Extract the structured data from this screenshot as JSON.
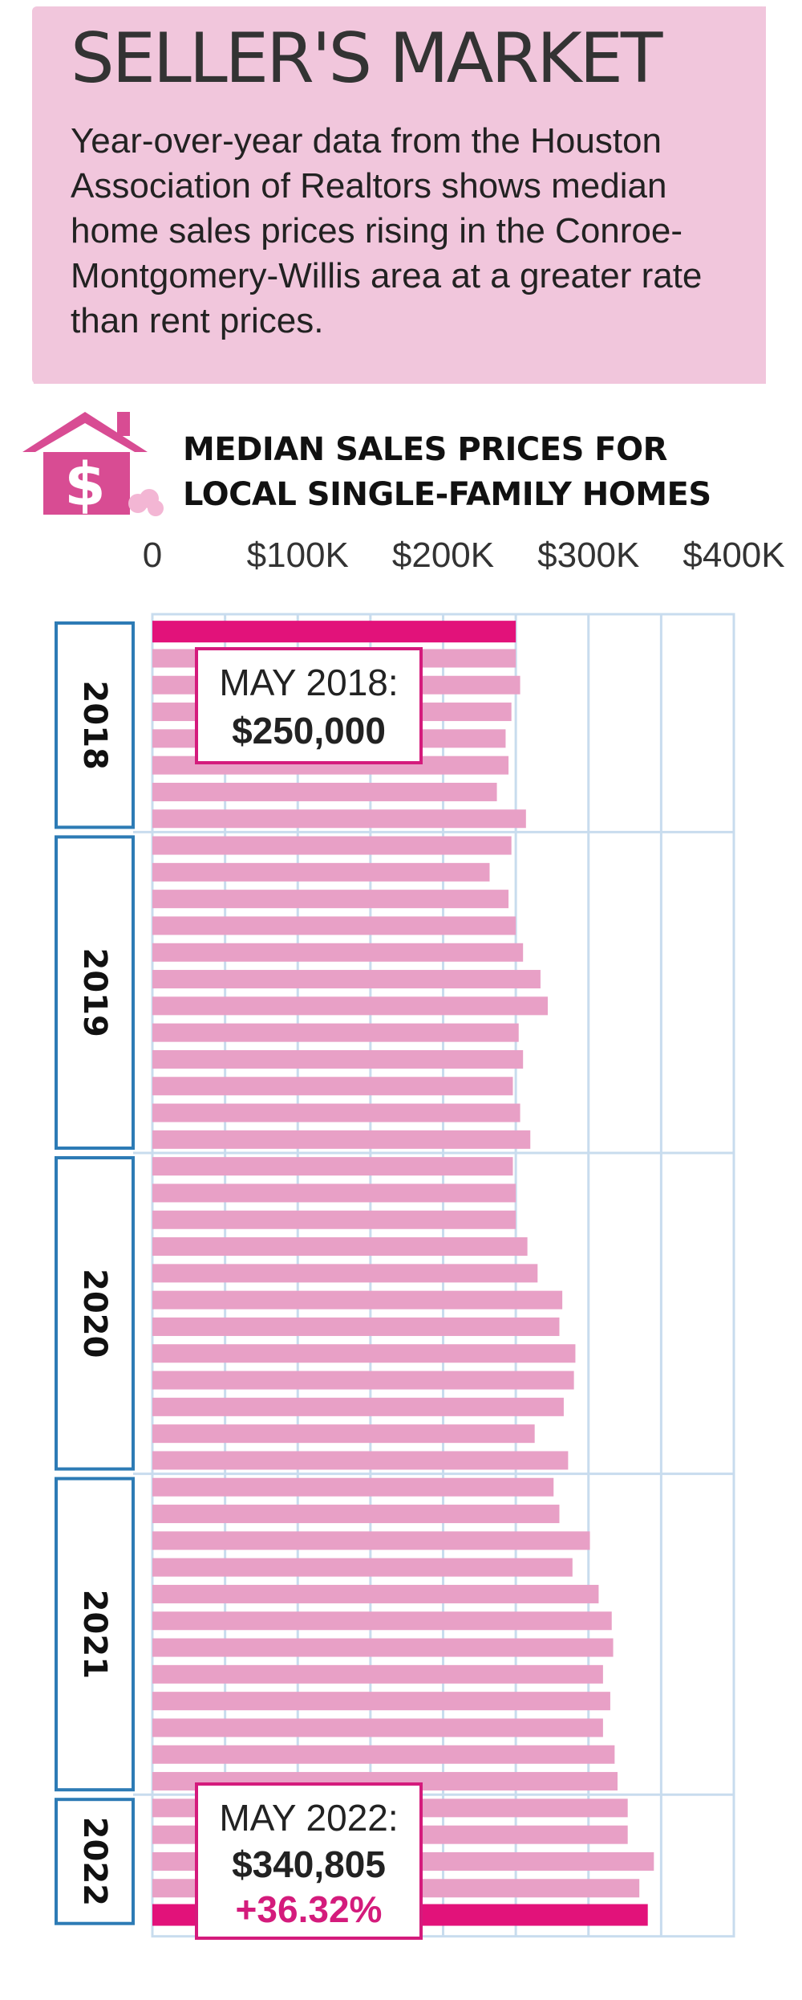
{
  "header": {
    "title": "SELLER'S MARKET",
    "description": "Year-over-year data from the Houston Association of Realtors shows median home sales prices rising in the Conroe-Montgomery-Willis area at a greater rate than rent prices."
  },
  "chart_title_lines": [
    "MEDIAN SALES PRICES FOR",
    "LOCAL SINGLE-FAMILY HOMES"
  ],
  "icons": {
    "house": "house-dollar-icon"
  },
  "colors": {
    "bar": "#e8a0c6",
    "highlight": "#e2127a",
    "grid": "#c8dcee",
    "year_box": "#2d7bb5",
    "header_bg": "#f1c6dc",
    "callout_border": "#d41b7c",
    "change_text": "#d41b7c"
  },
  "callouts": {
    "start": {
      "label": "MAY 2018:",
      "value": "$250,000"
    },
    "end": {
      "label": "MAY 2022:",
      "value": "$340,805",
      "change": "+36.32%"
    }
  },
  "chart_data": {
    "type": "bar",
    "orientation": "horizontal",
    "title": "MEDIAN SALES PRICES FOR LOCAL SINGLE-FAMILY HOMES",
    "xlabel": "",
    "ylabel": "",
    "xlim": [
      0,
      400000
    ],
    "x_ticks": [
      0,
      100000,
      200000,
      300000,
      400000
    ],
    "x_tick_labels": [
      "0",
      "$100K",
      "$200K",
      "$300K",
      "$400K"
    ],
    "grid": true,
    "year_groups": [
      {
        "label": "2018",
        "months": 8
      },
      {
        "label": "2019",
        "months": 12
      },
      {
        "label": "2020",
        "months": 12
      },
      {
        "label": "2021",
        "months": 12
      },
      {
        "label": "2022",
        "months": 5
      }
    ],
    "values": [
      250000,
      250000,
      253000,
      247000,
      243000,
      245000,
      237000,
      257000,
      247000,
      232000,
      245000,
      250000,
      255000,
      267000,
      272000,
      252000,
      255000,
      248000,
      253000,
      260000,
      248000,
      250000,
      250000,
      258000,
      265000,
      282000,
      280000,
      291000,
      290000,
      283000,
      263000,
      286000,
      276000,
      280000,
      301000,
      289000,
      307000,
      316000,
      317000,
      310000,
      315000,
      310000,
      318000,
      320000,
      327000,
      327000,
      345000,
      335000,
      340805
    ],
    "highlighted": [
      0,
      48
    ]
  }
}
